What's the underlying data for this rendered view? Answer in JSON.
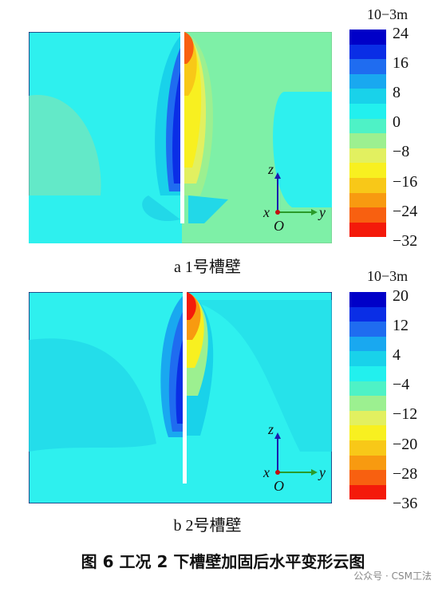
{
  "panels": [
    {
      "unit_label": "10−3m",
      "legend_ticks": [
        "24",
        "16",
        "8",
        "0",
        "−8",
        "−16",
        "−24",
        "−32"
      ],
      "caption": "a  1号槽壁",
      "axes": {
        "z": "z",
        "x": "x",
        "y": "y",
        "origin": "O"
      }
    },
    {
      "unit_label": "10−3m",
      "legend_ticks": [
        "20",
        "12",
        "4",
        "−4",
        "−12",
        "−20",
        "−28",
        "−36"
      ],
      "caption": "b  2号槽壁",
      "axes": {
        "z": "z",
        "x": "x",
        "y": "y",
        "origin": "O"
      }
    }
  ],
  "figure_caption": "图 6    工况 2 下槽壁加固后水平变形云图",
  "watermark": "公众号 · CSM工法",
  "colors": {
    "colormap": [
      "#0000c8",
      "#0a2ee6",
      "#1f6cf0",
      "#19a8f0",
      "#19d2ea",
      "#22f0ee",
      "#4ef2c6",
      "#9cf090",
      "#e2f060",
      "#f8f020",
      "#f8c818",
      "#f89a10",
      "#f86010",
      "#f41a0a"
    ],
    "background_field": "#2ef0ee",
    "light_green_field": "#8cf09a"
  }
}
